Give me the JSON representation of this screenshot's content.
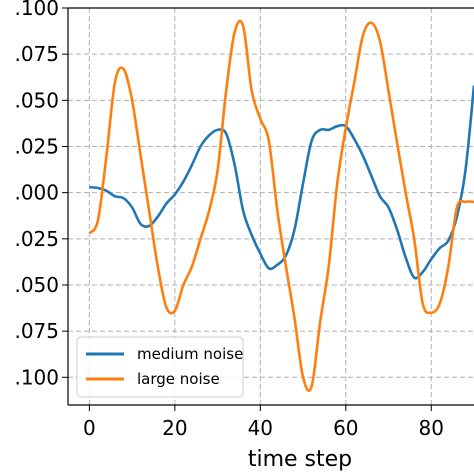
{
  "chart_data": {
    "type": "line",
    "title": "",
    "xlabel": "time step",
    "ylabel": "",
    "xlim": [
      -5,
      90
    ],
    "ylim": [
      -0.115,
      0.1
    ],
    "grid": true,
    "legend_position": "bottom-left",
    "x_ticks": [
      0,
      20,
      40,
      60,
      80
    ],
    "x_tick_labels": [
      "0",
      "20",
      "40",
      "60",
      "80"
    ],
    "y_ticks": [
      0.1,
      0.075,
      0.05,
      0.025,
      0.0,
      -0.025,
      -0.05,
      -0.075,
      -0.1
    ],
    "y_tick_labels": [
      ".100",
      ".075",
      ".050",
      ".025",
      ".000",
      ".025",
      ".050",
      ".075",
      ".100"
    ],
    "series": [
      {
        "name": "medium noise",
        "color": "#1f77b4",
        "x": [
          0,
          2,
          4,
          6,
          8,
          10,
          12,
          14,
          16,
          18,
          20,
          22,
          24,
          26,
          28,
          30,
          32,
          34,
          36,
          38,
          40,
          42,
          44,
          46,
          48,
          50,
          52,
          54,
          56,
          58,
          60,
          62,
          64,
          66,
          68,
          70,
          72,
          74,
          76,
          78,
          80,
          82,
          84,
          86,
          88,
          90
        ],
        "values": [
          0.003,
          0.0025,
          0.001,
          -0.002,
          -0.003,
          -0.008,
          -0.017,
          -0.018,
          -0.013,
          -0.006,
          -0.001,
          0.006,
          0.015,
          0.025,
          0.031,
          0.034,
          0.032,
          0.015,
          -0.01,
          -0.023,
          -0.033,
          -0.041,
          -0.039,
          -0.034,
          -0.02,
          0.005,
          0.028,
          0.034,
          0.034,
          0.036,
          0.036,
          0.029,
          0.02,
          0.009,
          -0.002,
          -0.008,
          -0.02,
          -0.035,
          -0.046,
          -0.043,
          -0.036,
          -0.03,
          -0.026,
          -0.013,
          0.012,
          0.058
        ]
      },
      {
        "name": "large noise",
        "color": "#ff7f0e",
        "x": [
          0,
          2,
          4,
          6,
          8,
          10,
          12,
          14,
          16,
          18,
          20,
          22,
          24,
          26,
          28,
          30,
          32,
          34,
          36,
          38,
          40,
          42,
          44,
          46,
          48,
          50,
          52,
          54,
          56,
          58,
          60,
          62,
          64,
          66,
          68,
          70,
          72,
          74,
          76,
          78,
          80,
          82,
          84,
          86,
          88,
          90
        ],
        "values": [
          -0.022,
          -0.015,
          0.02,
          0.06,
          0.067,
          0.05,
          0.02,
          -0.01,
          -0.04,
          -0.062,
          -0.064,
          -0.05,
          -0.04,
          -0.025,
          -0.01,
          0.012,
          0.055,
          0.087,
          0.09,
          0.055,
          0.04,
          0.028,
          -0.01,
          -0.04,
          -0.068,
          -0.1,
          -0.105,
          -0.07,
          -0.04,
          0.005,
          0.035,
          0.06,
          0.085,
          0.092,
          0.082,
          0.055,
          0.027,
          0.0,
          -0.025,
          -0.06,
          -0.065,
          -0.06,
          -0.04,
          -0.008,
          -0.005,
          -0.005
        ]
      }
    ]
  }
}
